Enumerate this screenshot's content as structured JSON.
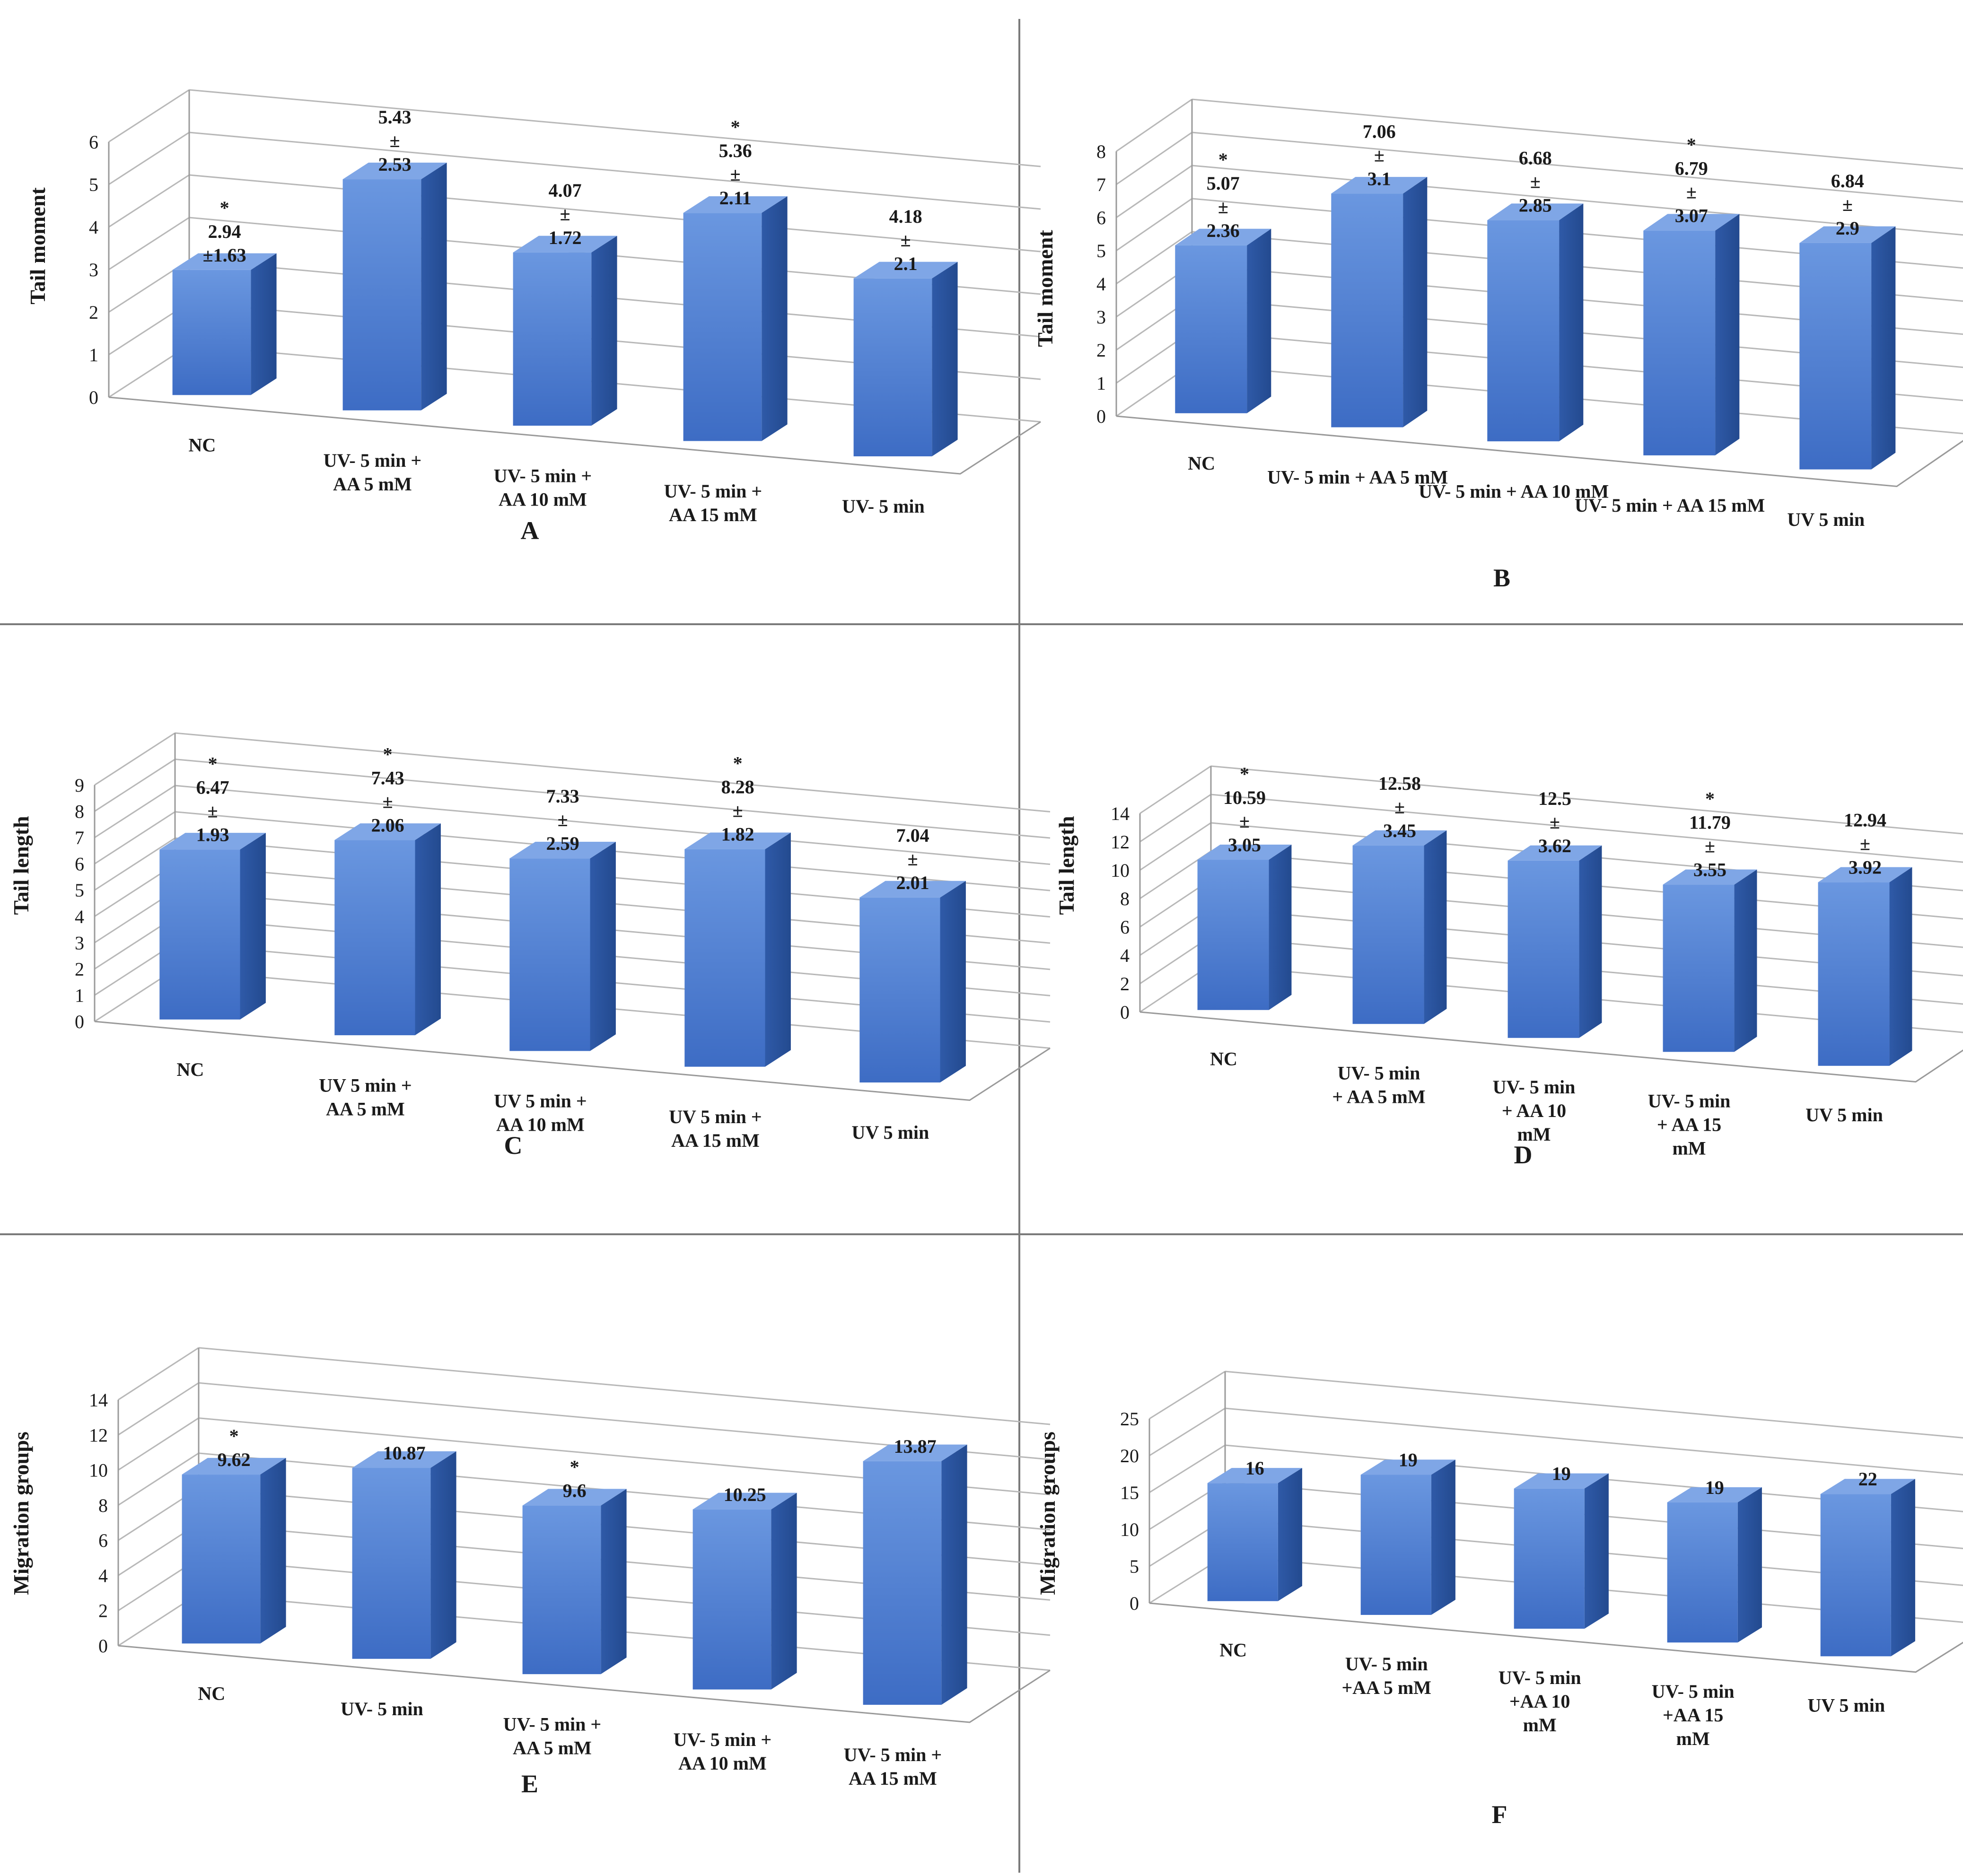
{
  "chart_data": [
    {
      "id": "A",
      "type": "bar",
      "title": "A",
      "ylabel": "Tail moment",
      "ylim": [
        0,
        6
      ],
      "yticks": [
        "0",
        "1",
        "2",
        "3",
        "4",
        "5",
        "6"
      ],
      "categories": [
        [
          "NC"
        ],
        [
          "UV- 5 min +",
          "AA 5 mM"
        ],
        [
          "UV- 5 min +",
          "AA 10 mM"
        ],
        [
          "UV- 5 min +",
          "AA 15 mM"
        ],
        [
          "UV- 5 min"
        ]
      ],
      "values": [
        2.94,
        5.43,
        4.07,
        5.36,
        4.18
      ],
      "labels": [
        [
          "*",
          "2.94",
          "±1.63"
        ],
        [
          "5.43",
          "±",
          "2.53"
        ],
        [
          "4.07",
          "±",
          "1.72"
        ],
        [
          "*",
          "5.36",
          "±",
          "2.11"
        ],
        [
          "4.18",
          "±",
          "2.1"
        ]
      ],
      "color": "#4a7bd0"
    },
    {
      "id": "B",
      "type": "bar",
      "title": "B",
      "ylabel": "Tail moment",
      "ylim": [
        0,
        8
      ],
      "yticks": [
        "0",
        "1",
        "2",
        "3",
        "4",
        "5",
        "6",
        "7",
        "8"
      ],
      "categories": [
        [
          "NC"
        ],
        [
          "UV- 5 min + AA 5 mM"
        ],
        [
          "UV- 5 min + AA 10 mM"
        ],
        [
          "UV- 5 min + AA 15 mM"
        ],
        [
          "UV 5 min"
        ]
      ],
      "values": [
        5.07,
        7.06,
        6.68,
        6.79,
        6.84
      ],
      "labels": [
        [
          "*",
          "5.07",
          "±",
          "2.36"
        ],
        [
          "7.06",
          "±",
          "3.1"
        ],
        [
          "6.68",
          "±",
          "2.85"
        ],
        [
          "*",
          "6.79",
          "±",
          "3.07"
        ],
        [
          "6.84",
          "±",
          "2.9"
        ]
      ],
      "color": "#4a7bd0"
    },
    {
      "id": "C",
      "type": "bar",
      "title": "C",
      "ylabel": "Tail length",
      "ylim": [
        0,
        9
      ],
      "yticks": [
        "0",
        "1",
        "2",
        "3",
        "4",
        "5",
        "6",
        "7",
        "8",
        "9"
      ],
      "categories": [
        [
          "NC"
        ],
        [
          "UV 5 min +",
          "AA 5 mM"
        ],
        [
          "UV 5 min +",
          "AA 10 mM"
        ],
        [
          "UV 5 min +",
          "AA 15 mM"
        ],
        [
          "UV 5 min"
        ]
      ],
      "values": [
        6.47,
        7.43,
        7.33,
        8.28,
        7.04
      ],
      "labels": [
        [
          "*",
          "6.47",
          "±",
          "1.93"
        ],
        [
          "*",
          "7.43",
          "±",
          "2.06"
        ],
        [
          "7.33",
          "±",
          "2.59"
        ],
        [
          "*",
          "8.28",
          "±",
          "1.82"
        ],
        [
          "7.04",
          "±",
          "2.01"
        ]
      ],
      "color": "#4a7bd0"
    },
    {
      "id": "D",
      "type": "bar",
      "title": "D",
      "ylabel": "Tail length",
      "ylim": [
        0,
        14
      ],
      "yticks": [
        "0",
        "2",
        "4",
        "6",
        "8",
        "10",
        "12",
        "14"
      ],
      "categories": [
        [
          "NC"
        ],
        [
          "UV- 5 min",
          "+ AA 5 mM"
        ],
        [
          "UV- 5 min",
          "+ AA 10",
          "mM"
        ],
        [
          "UV- 5 min",
          "+ AA 15",
          "mM"
        ],
        [
          "UV 5 min"
        ]
      ],
      "values": [
        10.59,
        12.58,
        12.5,
        11.79,
        12.94
      ],
      "labels": [
        [
          "*",
          "10.59",
          "±",
          "3.05"
        ],
        [
          "12.58",
          "±",
          "3.45"
        ],
        [
          "12.5",
          "±",
          "3.62"
        ],
        [
          "*",
          "11.79",
          "±",
          "3.55"
        ],
        [
          "12.94",
          "±",
          "3.92"
        ]
      ],
      "color": "#4a7bd0"
    },
    {
      "id": "E",
      "type": "bar",
      "title": "E",
      "ylabel": "Migration groups",
      "ylim": [
        0,
        14
      ],
      "yticks": [
        "0",
        "2",
        "4",
        "6",
        "8",
        "10",
        "12",
        "14"
      ],
      "categories": [
        [
          "NC"
        ],
        [
          "UV- 5 min"
        ],
        [
          "UV- 5 min +",
          "AA 5 mM"
        ],
        [
          "UV- 5 min +",
          "AA 10 mM"
        ],
        [
          "UV- 5 min +",
          "AA 15 mM"
        ]
      ],
      "values": [
        9.62,
        10.87,
        9.6,
        10.25,
        13.87
      ],
      "labels": [
        [
          "*",
          "9.62"
        ],
        [
          "10.87"
        ],
        [
          "*",
          "9.6"
        ],
        [
          "10.25"
        ],
        [
          "13.87"
        ]
      ],
      "color": "#4a7bd0"
    },
    {
      "id": "F",
      "type": "bar",
      "title": "F",
      "ylabel": "Migration groups",
      "ylim": [
        0,
        25
      ],
      "yticks": [
        "0",
        "5",
        "10",
        "15",
        "20",
        "25"
      ],
      "categories": [
        [
          "NC"
        ],
        [
          "UV- 5 min",
          "+AA 5 mM"
        ],
        [
          "UV- 5 min",
          "+AA 10",
          "mM"
        ],
        [
          "UV- 5 min",
          "+AA 15",
          "mM"
        ],
        [
          "UV 5 min"
        ]
      ],
      "values": [
        16,
        19,
        19,
        19,
        22
      ],
      "labels": [
        [
          "16"
        ],
        [
          "19"
        ],
        [
          "19"
        ],
        [
          "19"
        ],
        [
          "22"
        ]
      ],
      "color": "#4a7bd0"
    }
  ]
}
